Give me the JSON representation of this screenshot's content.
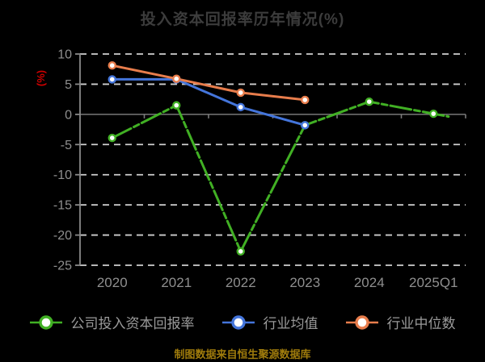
{
  "chart_data": {
    "type": "line",
    "title": "投入资本回报率历年情况(%)",
    "ylabel": "(%)",
    "source_note": "制图数据来自恒生聚源数据库",
    "categories": [
      "2020",
      "2021",
      "2022",
      "2023",
      "2024",
      "2025Q1"
    ],
    "ylim": [
      -25,
      10
    ],
    "yticks": [
      10,
      5,
      0,
      -5,
      -10,
      -15,
      -20,
      -25
    ],
    "grid": "horizontal-dashed",
    "legend_position": "bottom",
    "series": [
      {
        "name": "公司投入资本回报率",
        "color": "#41b024",
        "marker": "circle-white-fill",
        "line_style": "long-dash-dot",
        "values": [
          -3.9,
          1.5,
          -22.7,
          -1.8,
          2.1,
          0.1
        ]
      },
      {
        "name": "行业均值",
        "color": "#4475DB",
        "marker": "circle-white-fill",
        "line_style": "solid",
        "values": [
          5.8,
          5.8,
          1.2,
          -1.8,
          null,
          null
        ]
      },
      {
        "name": "行业中位数",
        "color": "#E87D4C",
        "marker": "circle-white-fill",
        "line_style": "solid",
        "values": [
          8.1,
          5.9,
          3.6,
          2.4,
          null,
          null
        ]
      }
    ],
    "colors": {
      "background": "#000000",
      "title": "#3c3c3c",
      "axis": "#8a8a8a",
      "tick_label": "#8f8f8f",
      "gridline": "#cfcfcf",
      "zero_line": "#6e6e6e",
      "ylabel": "#cc0000",
      "legend_text": "#9a9a9a",
      "source_note": "#a07c0c"
    }
  }
}
